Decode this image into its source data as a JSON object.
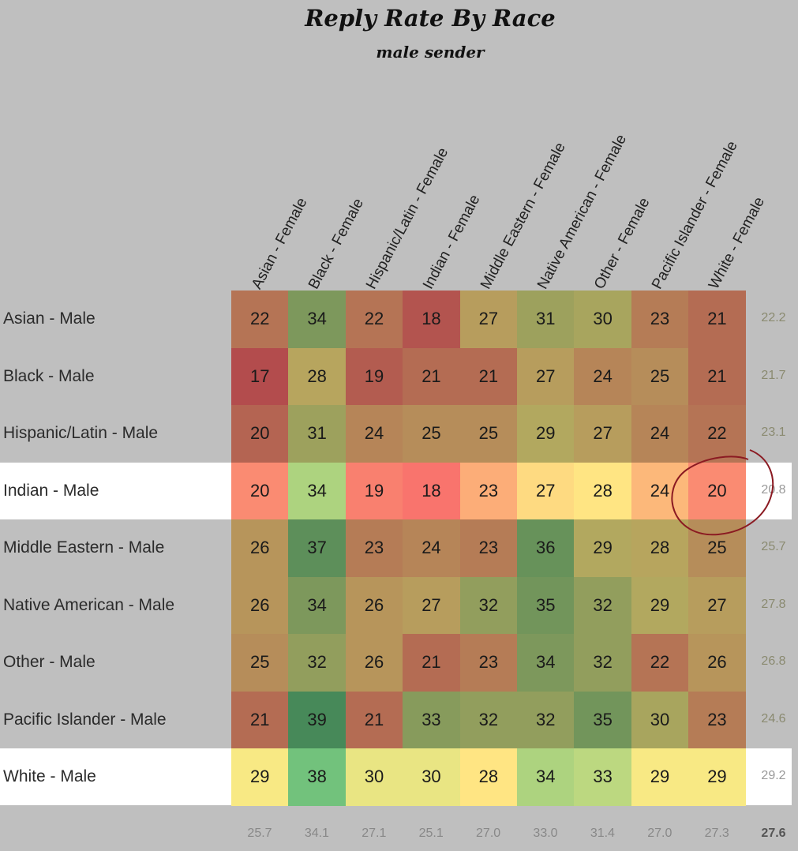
{
  "chart_data": {
    "type": "heatmap",
    "title": "Reply Rate By Race",
    "subtitle": "male sender",
    "columns": [
      "Asian - Female",
      "Black - Female",
      "Hispanic/Latin - Female",
      "Indian - Female",
      "Middle Eastern - Female",
      "Native American - Female",
      "Other - Female",
      "Pacific Islander - Female",
      "White - Female"
    ],
    "rows": [
      "Asian - Male",
      "Black - Male",
      "Hispanic/Latin - Male",
      "Indian - Male",
      "Middle Eastern - Male",
      "Native American - Male",
      "Other - Male",
      "Pacific Islander - Male",
      "White - Male"
    ],
    "values": [
      [
        22,
        34,
        22,
        18,
        27,
        31,
        30,
        23,
        21
      ],
      [
        17,
        28,
        19,
        21,
        21,
        27,
        24,
        25,
        21
      ],
      [
        20,
        31,
        24,
        25,
        25,
        29,
        27,
        24,
        22
      ],
      [
        20,
        34,
        19,
        18,
        23,
        27,
        28,
        24,
        20
      ],
      [
        26,
        37,
        23,
        24,
        23,
        36,
        29,
        28,
        25
      ],
      [
        26,
        34,
        26,
        27,
        32,
        35,
        32,
        29,
        27
      ],
      [
        25,
        32,
        26,
        21,
        23,
        34,
        32,
        22,
        26
      ],
      [
        21,
        39,
        21,
        33,
        32,
        32,
        35,
        30,
        23
      ],
      [
        29,
        38,
        30,
        30,
        28,
        34,
        33,
        29,
        29
      ]
    ],
    "row_averages": [
      "22.2",
      "21.7",
      "23.1",
      "20.8",
      "25.7",
      "27.8",
      "26.8",
      "24.6",
      "29.2"
    ],
    "column_averages": [
      "25.7",
      "34.1",
      "27.1",
      "25.1",
      "27.0",
      "33.0",
      "31.4",
      "27.0",
      "27.3"
    ],
    "overall_average": "27.6",
    "highlighted_rows": [
      "Indian - Male",
      "White - Male"
    ],
    "annotation": "circle around Indian - Male / White - Female",
    "color_scale": {
      "low": "#f8696b",
      "mid": "#ffeb84",
      "high": "#63be7b",
      "min": 17,
      "mid_value": 28.5,
      "max": 39
    }
  }
}
